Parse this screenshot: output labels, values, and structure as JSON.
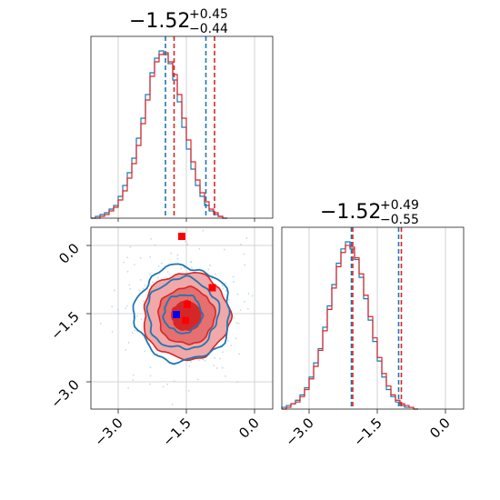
{
  "chart_data": [
    {
      "type": "histogram",
      "panel": "top-left marginal",
      "title": {
        "median": "−1.52",
        "plus": "+0.45",
        "minus": "−0.44"
      },
      "xlim": [
        -3.6,
        0.4
      ],
      "grid": true,
      "series": [
        {
          "color": "#1f77b4",
          "bin_start": -3.6,
          "bin_width": 0.1,
          "counts": [
            0,
            1,
            2,
            3,
            5,
            7,
            12,
            18,
            25,
            33,
            44,
            55,
            68,
            80,
            88,
            92,
            90,
            85,
            76,
            64,
            50,
            38,
            27,
            18,
            12,
            7,
            4,
            2,
            1,
            0
          ],
          "quantiles": [
            -1.96,
            -1.07
          ]
        },
        {
          "color": "#d62728",
          "bin_start": -3.6,
          "bin_width": 0.1,
          "counts": [
            0,
            0,
            1,
            2,
            4,
            6,
            10,
            15,
            22,
            30,
            40,
            52,
            65,
            78,
            86,
            90,
            91,
            86,
            79,
            68,
            55,
            43,
            31,
            21,
            14,
            9,
            5,
            3,
            1,
            0
          ],
          "quantiles": [
            -1.77,
            -0.88
          ]
        }
      ]
    },
    {
      "type": "histogram",
      "panel": "bottom-right marginal",
      "title": {
        "median": "−1.52",
        "plus": "+0.49",
        "minus": "−0.55"
      },
      "xlim": [
        -3.6,
        0.4
      ],
      "grid": true,
      "xticks": [
        "−3.0",
        "−1.5",
        "0.0"
      ],
      "series": [
        {
          "color": "#1f77b4",
          "bin_start": -3.6,
          "bin_width": 0.1,
          "counts": [
            1,
            2,
            3,
            5,
            8,
            12,
            18,
            26,
            34,
            46,
            58,
            70,
            82,
            90,
            94,
            90,
            84,
            74,
            62,
            50,
            38,
            27,
            18,
            11,
            7,
            4,
            2,
            1,
            1,
            0
          ],
          "quantiles": [
            -2.07,
            -1.03
          ]
        },
        {
          "color": "#d62728",
          "bin_start": -3.6,
          "bin_width": 0.1,
          "counts": [
            0,
            1,
            3,
            4,
            7,
            11,
            17,
            24,
            33,
            44,
            56,
            68,
            80,
            88,
            92,
            91,
            85,
            76,
            64,
            52,
            40,
            29,
            20,
            13,
            8,
            5,
            3,
            2,
            1,
            0
          ],
          "quantiles": [
            -2.04,
            -0.97
          ]
        }
      ]
    },
    {
      "type": "contour",
      "panel": "bottom-left 2D",
      "xlim": [
        -3.6,
        0.4
      ],
      "ylim": [
        -3.6,
        0.4
      ],
      "grid": true,
      "xticks": [
        "−3.0",
        "−1.5",
        "0.0"
      ],
      "yticks": [
        "0.0",
        "−1.5",
        "−3.0"
      ],
      "red_contour_levels": [
        {
          "center": [
            -1.5,
            -1.55
          ],
          "radius": [
            0.32,
            0.32
          ],
          "fill": "#d62728"
        },
        {
          "center": [
            -1.5,
            -1.55
          ],
          "radius": [
            0.62,
            0.62
          ],
          "fill": "#e66f6f"
        },
        {
          "center": [
            -1.5,
            -1.55
          ],
          "radius": [
            0.95,
            0.95
          ],
          "fill": "#f0a8a8"
        }
      ],
      "blue_contour_levels": [
        {
          "center": [
            -1.58,
            -1.5
          ],
          "radius": [
            0.42,
            0.42
          ]
        },
        {
          "center": [
            -1.58,
            -1.5
          ],
          "radius": [
            0.78,
            0.78
          ]
        },
        {
          "center": [
            -1.58,
            -1.5
          ],
          "radius": [
            1.05,
            1.05
          ]
        }
      ],
      "markers": [
        {
          "color": "#ff0000",
          "x": -1.6,
          "y": 0.2
        },
        {
          "color": "#ff0000",
          "x": -0.93,
          "y": -0.93
        },
        {
          "color": "#ff0000",
          "x": -1.48,
          "y": -1.3
        },
        {
          "color": "#ff0000",
          "x": -1.52,
          "y": -1.65
        },
        {
          "color": "#0000ff",
          "x": -1.72,
          "y": -1.52
        }
      ]
    }
  ]
}
